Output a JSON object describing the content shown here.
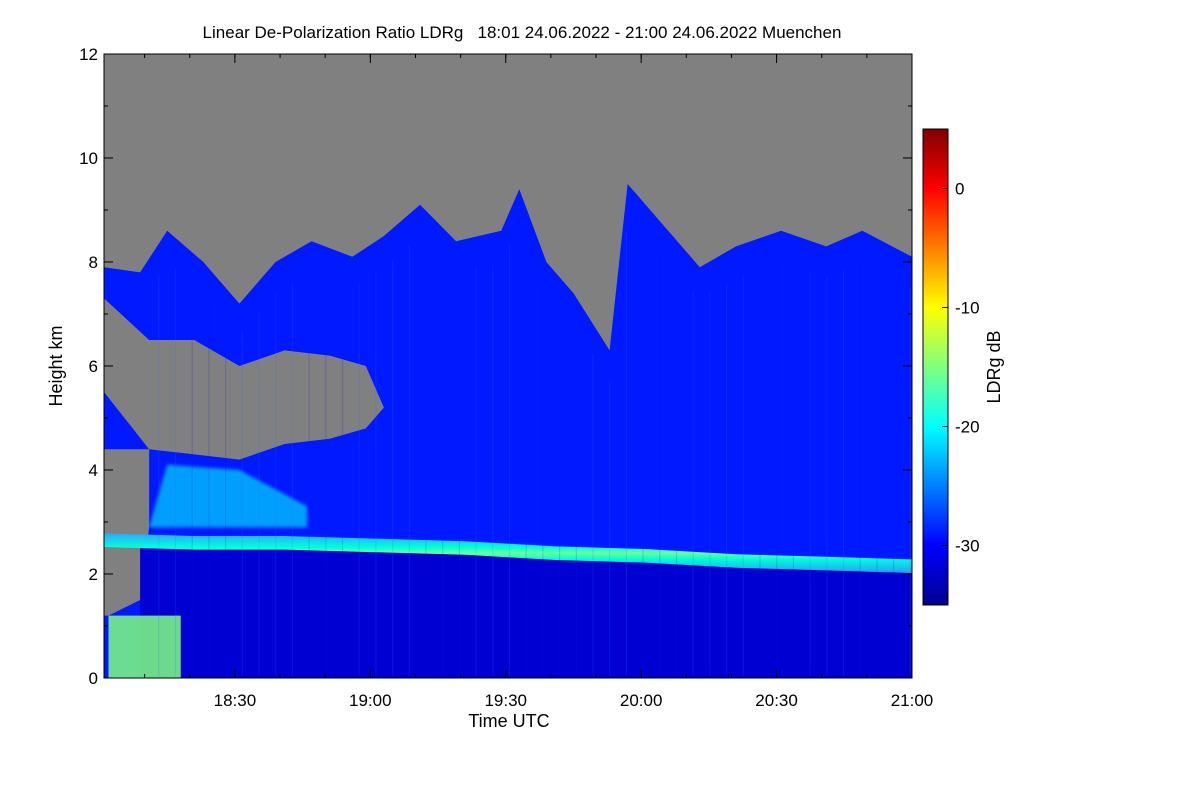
{
  "chart_data": {
    "type": "heatmap",
    "title": "Linear De-Polarization Ratio LDRg   18:01 24.06.2022 - 21:00 24.06.2022 Muenchen",
    "xlabel": "Time UTC",
    "ylabel": "Height km",
    "colorbar_label": "LDRg dB",
    "x_range_minutes": [
      0,
      179
    ],
    "x_ticks": [
      {
        "label": "18:30",
        "minute": 29
      },
      {
        "label": "19:00",
        "minute": 59
      },
      {
        "label": "19:30",
        "minute": 89
      },
      {
        "label": "20:00",
        "minute": 119
      },
      {
        "label": "20:30",
        "minute": 149
      },
      {
        "label": "21:00",
        "minute": 179
      }
    ],
    "ylim": [
      0,
      12
    ],
    "y_ticks": [
      0,
      2,
      4,
      6,
      8,
      10,
      12
    ],
    "colorbar_range": [
      -35,
      5
    ],
    "colorbar_ticks": [
      0,
      -10,
      -20,
      -30
    ],
    "no_data_color": "#808080",
    "cloud_top_km": [
      {
        "minute": 0,
        "km": 7.9
      },
      {
        "minute": 8,
        "km": 7.8
      },
      {
        "minute": 14,
        "km": 8.6
      },
      {
        "minute": 22,
        "km": 8.0
      },
      {
        "minute": 30,
        "km": 7.2
      },
      {
        "minute": 38,
        "km": 8.0
      },
      {
        "minute": 46,
        "km": 8.4
      },
      {
        "minute": 55,
        "km": 8.1
      },
      {
        "minute": 62,
        "km": 8.5
      },
      {
        "minute": 70,
        "km": 9.1
      },
      {
        "minute": 78,
        "km": 8.4
      },
      {
        "minute": 88,
        "km": 8.6
      },
      {
        "minute": 92,
        "km": 9.4
      },
      {
        "minute": 98,
        "km": 8.0
      },
      {
        "minute": 104,
        "km": 7.4
      },
      {
        "minute": 112,
        "km": 6.3
      },
      {
        "minute": 116,
        "km": 9.5
      },
      {
        "minute": 124,
        "km": 8.7
      },
      {
        "minute": 132,
        "km": 7.9
      },
      {
        "minute": 140,
        "km": 8.3
      },
      {
        "minute": 150,
        "km": 8.6
      },
      {
        "minute": 160,
        "km": 8.3
      },
      {
        "minute": 168,
        "km": 8.6
      },
      {
        "minute": 179,
        "km": 8.1
      }
    ],
    "gap_below_clouds": [
      {
        "minute": 0,
        "top_km": 7.3,
        "bottom_km": 5.5
      },
      {
        "minute": 10,
        "top_km": 6.5,
        "bottom_km": 4.4
      },
      {
        "minute": 20,
        "top_km": 6.5,
        "bottom_km": 4.3
      },
      {
        "minute": 30,
        "top_km": 6.0,
        "bottom_km": 4.2
      },
      {
        "minute": 40,
        "top_km": 6.3,
        "bottom_km": 4.5
      },
      {
        "minute": 50,
        "top_km": 6.2,
        "bottom_km": 4.6
      },
      {
        "minute": 58,
        "top_km": 6.0,
        "bottom_km": 4.8
      },
      {
        "minute": 62,
        "top_km": 5.2,
        "bottom_km": 5.2
      }
    ],
    "layer_2km_center_km": [
      {
        "minute": 0,
        "km": 2.65
      },
      {
        "minute": 20,
        "km": 2.6
      },
      {
        "minute": 40,
        "km": 2.6
      },
      {
        "minute": 60,
        "km": 2.55
      },
      {
        "minute": 80,
        "km": 2.5
      },
      {
        "minute": 100,
        "km": 2.4
      },
      {
        "minute": 120,
        "km": 2.35
      },
      {
        "minute": 140,
        "km": 2.25
      },
      {
        "minute": 160,
        "km": 2.2
      },
      {
        "minute": 179,
        "km": 2.15
      }
    ],
    "layer_2km_ldr_db": -21,
    "cloud_ldr_db": -29,
    "boundary_layer_ldr_db": -32,
    "depolarizing_plume": {
      "minute_range": [
        10,
        45
      ],
      "km_range": [
        2.9,
        4.1
      ],
      "ldr_db": -22
    },
    "near_ground_aerosol": {
      "minute_range": [
        1,
        17
      ],
      "km_range": [
        0,
        1.2
      ],
      "ldr_db": -15
    }
  }
}
